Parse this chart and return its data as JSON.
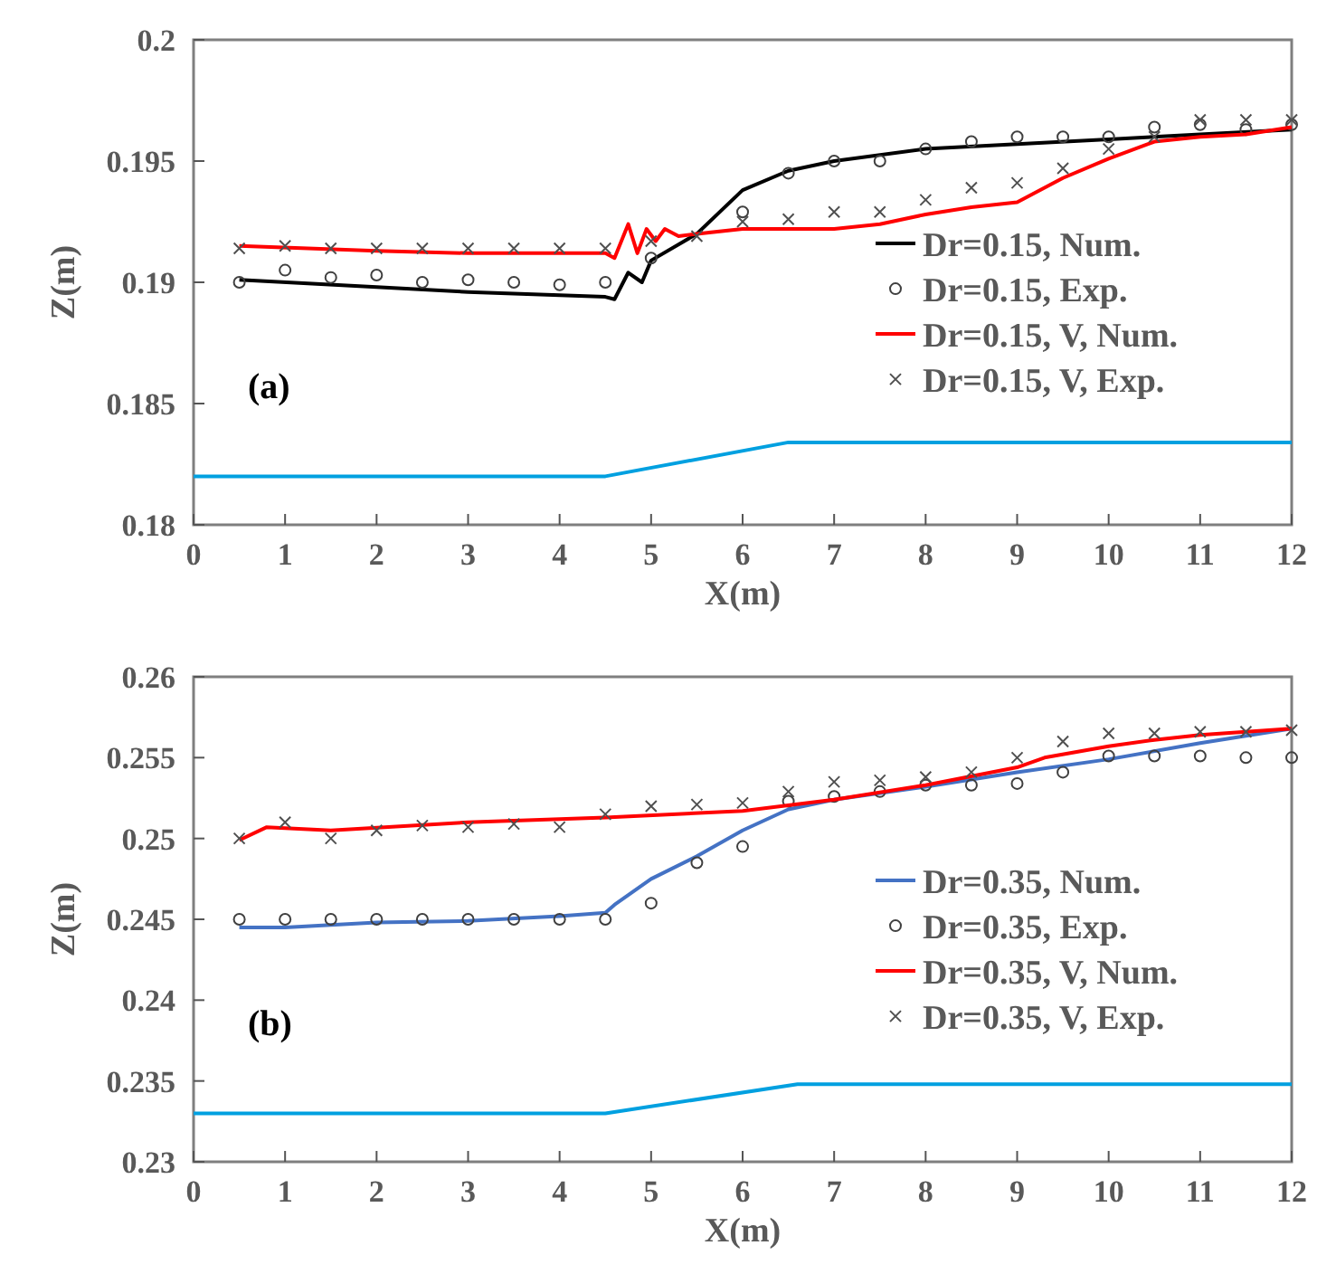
{
  "chart_data": [
    {
      "type": "line",
      "xlabel": "X(m)",
      "ylabel": "Z(m)",
      "annotations": [
        "(a)"
      ],
      "xlim": [
        0,
        12
      ],
      "ylim": [
        0.18,
        0.2
      ],
      "xticks": [
        0,
        1,
        2,
        3,
        4,
        5,
        6,
        7,
        8,
        9,
        10,
        11,
        12
      ],
      "yticks": [
        {
          "value": 0.18,
          "label": "0.18"
        },
        {
          "value": 0.185,
          "label": "0.185"
        },
        {
          "value": 0.19,
          "label": "0.19"
        },
        {
          "value": 0.195,
          "label": "0.195"
        },
        {
          "value": 0.2,
          "label": "0.2"
        }
      ],
      "legend": "right",
      "series": [
        {
          "name": "Dr=0.15, Num.",
          "marker": "none",
          "color": "#000000",
          "x": [
            0.5,
            2,
            3,
            4.5,
            4.6,
            4.75,
            4.9,
            5,
            5.5,
            6,
            6.5,
            7,
            8,
            9,
            10,
            11,
            12
          ],
          "values": [
            0.1901,
            0.1898,
            0.1896,
            0.1894,
            0.1893,
            0.1904,
            0.19,
            0.1909,
            0.192,
            0.1938,
            0.1946,
            0.195,
            0.1955,
            0.1957,
            0.1959,
            0.1961,
            0.1963
          ]
        },
        {
          "name": "Dr=0.15, Exp.",
          "type": "scatter",
          "marker": "circle",
          "color": "#404040",
          "x": [
            0.5,
            1,
            1.5,
            2,
            2.5,
            3,
            3.5,
            4,
            4.5,
            5,
            6,
            6.5,
            7,
            7.5,
            8,
            8.5,
            9,
            9.5,
            10,
            10.5,
            11,
            11.5,
            12
          ],
          "values": [
            0.19,
            0.1905,
            0.1902,
            0.1903,
            0.19,
            0.1901,
            0.19,
            0.1899,
            0.19,
            0.191,
            0.1929,
            0.1945,
            0.195,
            0.195,
            0.1955,
            0.1958,
            0.196,
            0.196,
            0.196,
            0.1964,
            0.1965,
            0.1963,
            0.1965
          ]
        },
        {
          "name": "Dr=0.15, V, Num.",
          "marker": "none",
          "color": "#ff0000",
          "x": [
            0.5,
            2,
            3,
            4.5,
            4.6,
            4.75,
            4.85,
            4.95,
            5.05,
            5.15,
            5.3,
            5.5,
            6,
            6.5,
            7,
            7.5,
            8,
            8.5,
            9,
            9.5,
            10,
            10.5,
            11,
            11.5,
            12
          ],
          "values": [
            0.1915,
            0.1913,
            0.1912,
            0.1912,
            0.191,
            0.1924,
            0.1912,
            0.1922,
            0.1917,
            0.1922,
            0.1919,
            0.192,
            0.1922,
            0.1922,
            0.1922,
            0.1924,
            0.1928,
            0.1931,
            0.1933,
            0.1943,
            0.1951,
            0.1958,
            0.196,
            0.1961,
            0.1964
          ]
        },
        {
          "name": "Dr=0.15, V, Exp.",
          "type": "scatter",
          "marker": "cross",
          "color": "#505050",
          "x": [
            0.5,
            1,
            1.5,
            2,
            2.5,
            3,
            3.5,
            4,
            4.5,
            5,
            5.5,
            6,
            6.5,
            7,
            7.5,
            8,
            8.5,
            9,
            9.5,
            10,
            10.5,
            11,
            11.5,
            12
          ],
          "values": [
            0.1914,
            0.1915,
            0.1914,
            0.1914,
            0.1914,
            0.1914,
            0.1914,
            0.1914,
            0.1914,
            0.1917,
            0.1919,
            0.1925,
            0.1926,
            0.1929,
            0.1929,
            0.1934,
            0.1939,
            0.1941,
            0.1947,
            0.1955,
            0.196,
            0.1967,
            0.1967,
            0.1967
          ]
        },
        {
          "marker": "none",
          "color": "#00a0e0",
          "x": [
            0,
            4.5,
            6.5,
            12
          ],
          "values": [
            0.182,
            0.182,
            0.1834,
            0.1834
          ]
        }
      ]
    },
    {
      "type": "line",
      "xlabel": "X(m)",
      "ylabel": "Z(m)",
      "annotations": [
        "(b)"
      ],
      "xlim": [
        0,
        12
      ],
      "ylim": [
        0.23,
        0.26
      ],
      "xticks": [
        0,
        1,
        2,
        3,
        4,
        5,
        6,
        7,
        8,
        9,
        10,
        11,
        12
      ],
      "yticks": [
        {
          "value": 0.23,
          "label": "0.23"
        },
        {
          "value": 0.235,
          "label": "0.235"
        },
        {
          "value": 0.24,
          "label": "0.24"
        },
        {
          "value": 0.245,
          "label": "0.245"
        },
        {
          "value": 0.25,
          "label": "0.25"
        },
        {
          "value": 0.255,
          "label": "0.255"
        },
        {
          "value": 0.26,
          "label": "0.26"
        }
      ],
      "legend": "right",
      "series": [
        {
          "name": "Dr=0.35, Num.",
          "marker": "none",
          "color": "#4472c4",
          "x": [
            0.5,
            1,
            2,
            3,
            4,
            4.5,
            4.6,
            5,
            5.5,
            6,
            6.5,
            7,
            8,
            9,
            10,
            11,
            12
          ],
          "values": [
            0.2445,
            0.2445,
            0.2448,
            0.2449,
            0.2452,
            0.2454,
            0.2459,
            0.2475,
            0.2489,
            0.2505,
            0.2518,
            0.2524,
            0.2532,
            0.2541,
            0.2549,
            0.2559,
            0.2568
          ]
        },
        {
          "name": "Dr=0.35, Exp.",
          "type": "scatter",
          "marker": "circle",
          "color": "#404040",
          "x": [
            0.5,
            1,
            1.5,
            2,
            2.5,
            3,
            3.5,
            4,
            4.5,
            5,
            5.5,
            6,
            6.5,
            7,
            7.5,
            8,
            8.5,
            9,
            9.5,
            10,
            10.5,
            11,
            11.5,
            12
          ],
          "values": [
            0.245,
            0.245,
            0.245,
            0.245,
            0.245,
            0.245,
            0.245,
            0.245,
            0.245,
            0.246,
            0.2485,
            0.2495,
            0.2523,
            0.2526,
            0.2529,
            0.2533,
            0.2533,
            0.2534,
            0.2541,
            0.2551,
            0.2551,
            0.2551,
            0.255,
            0.255
          ]
        },
        {
          "name": "Dr=0.35, V, Num.",
          "marker": "none",
          "color": "#ff0000",
          "x": [
            0.5,
            0.8,
            1.5,
            3,
            4.5,
            6,
            7,
            8,
            9,
            9.3,
            10,
            10.5,
            11,
            12
          ],
          "values": [
            0.2499,
            0.2507,
            0.2505,
            0.251,
            0.2513,
            0.2517,
            0.2524,
            0.2533,
            0.2544,
            0.255,
            0.2557,
            0.2561,
            0.2564,
            0.2568
          ]
        },
        {
          "name": "Dr=0.35, V, Exp.",
          "type": "scatter",
          "marker": "cross",
          "color": "#505050",
          "x": [
            0.5,
            1,
            1.5,
            2,
            2.5,
            3,
            3.5,
            4,
            4.5,
            5,
            5.5,
            6,
            6.5,
            7,
            7.5,
            8,
            8.5,
            9,
            9.5,
            10,
            10.5,
            11,
            11.5,
            12
          ],
          "values": [
            0.25,
            0.251,
            0.25,
            0.2505,
            0.2508,
            0.2507,
            0.2509,
            0.2507,
            0.2515,
            0.252,
            0.2521,
            0.2522,
            0.2529,
            0.2535,
            0.2536,
            0.2538,
            0.2541,
            0.255,
            0.256,
            0.2565,
            0.2565,
            0.2566,
            0.2566,
            0.2567
          ]
        },
        {
          "marker": "none",
          "color": "#00a0e0",
          "x": [
            0,
            4.5,
            6.6,
            12
          ],
          "values": [
            0.233,
            0.233,
            0.2348,
            0.2348
          ]
        }
      ]
    }
  ]
}
